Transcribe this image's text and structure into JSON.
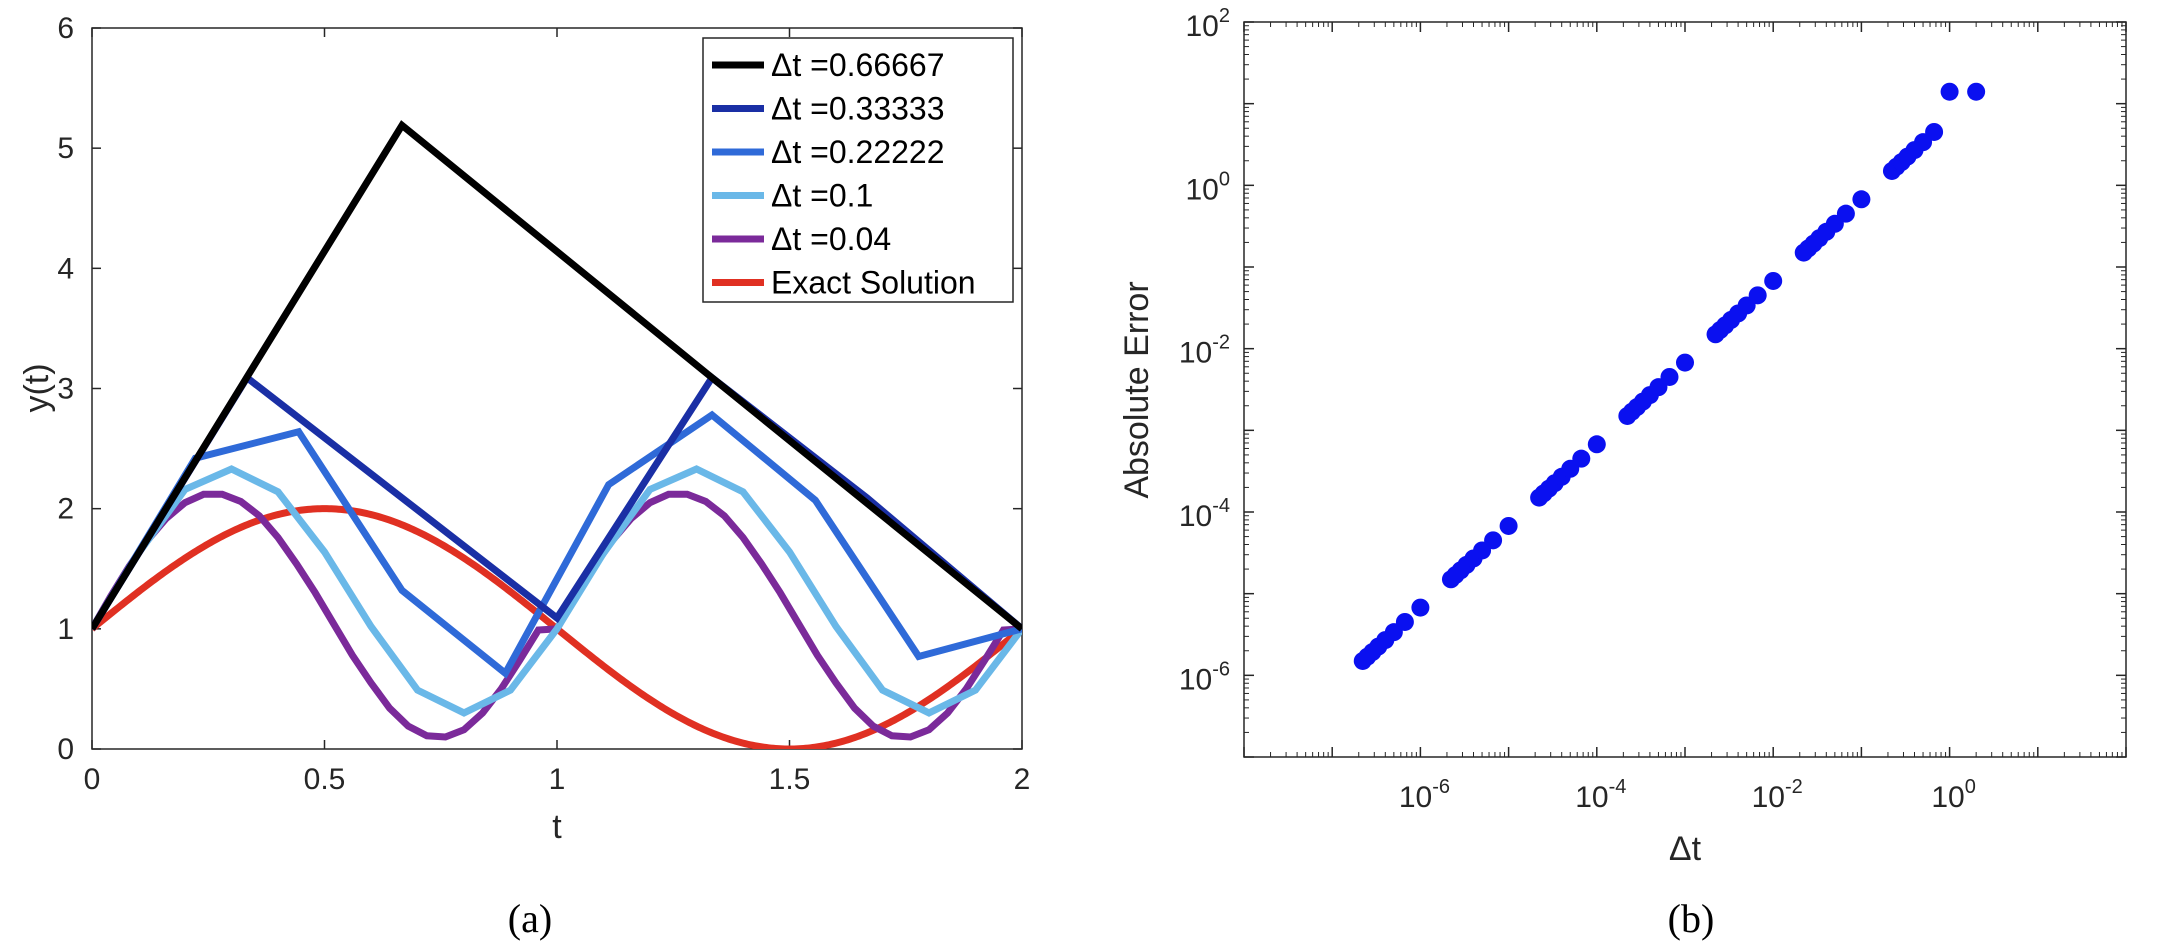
{
  "chart_data": [
    {
      "type": "line",
      "panel_label": "(a)",
      "xlabel": "t",
      "ylabel": "y(t)",
      "xlim": [
        0,
        2
      ],
      "ylim": [
        0,
        6
      ],
      "xticks": [
        "0",
        "0.5",
        "1",
        "1.5",
        "2"
      ],
      "yticks": [
        "0",
        "1",
        "2",
        "3",
        "4",
        "5",
        "6"
      ],
      "legend_position": "top-right",
      "series": [
        {
          "name": "Δt =0.66667",
          "color": "#000000",
          "x": [
            0,
            0.66667,
            1.33333,
            2
          ],
          "y": [
            1.0,
            5.19,
            3.09,
            1.0
          ]
        },
        {
          "name": "Δt =0.33333",
          "color": "#1a2fa5",
          "x": [
            0,
            0.33333,
            0.66667,
            1.0,
            1.33333,
            1.66667,
            2.0
          ],
          "y": [
            1.0,
            3.09,
            2.09,
            1.09,
            3.09,
            2.09,
            1.0
          ]
        },
        {
          "name": "Δt =0.22222",
          "color": "#2f6ad8",
          "x": [
            0,
            0.22222,
            0.44444,
            0.66667,
            0.88889,
            1.11111,
            1.33333,
            1.55556,
            1.77778,
            2.0
          ],
          "y": [
            1.0,
            2.42,
            2.64,
            1.32,
            0.63,
            2.2,
            2.78,
            2.07,
            0.77,
            1.0
          ]
        },
        {
          "name": "Δt =0.1",
          "color": "#6ab8e8",
          "x": [
            0,
            0.1,
            0.2,
            0.3,
            0.4,
            0.5,
            0.6,
            0.7,
            0.8,
            0.9,
            1.0,
            1.1,
            1.2,
            1.3,
            1.4,
            1.5,
            1.6,
            1.7,
            1.8,
            1.9,
            2.0
          ],
          "y": [
            1.0,
            1.63,
            2.16,
            2.33,
            2.14,
            1.64,
            1.02,
            0.49,
            0.3,
            0.49,
            1.0,
            1.63,
            2.16,
            2.33,
            2.14,
            1.64,
            1.02,
            0.49,
            0.3,
            0.49,
            1.0
          ]
        },
        {
          "name": "Δt =0.04",
          "color": "#7b2a9a",
          "x": [
            0,
            0.04,
            0.08,
            0.12,
            0.16,
            0.2,
            0.24,
            0.28,
            0.32,
            0.36,
            0.4,
            0.44,
            0.48,
            0.52,
            0.56,
            0.6,
            0.64,
            0.68,
            0.72,
            0.76,
            0.8,
            0.84,
            0.88,
            0.92,
            0.96,
            1.0,
            1.04,
            1.08,
            1.12,
            1.16,
            1.2,
            1.24,
            1.28,
            1.32,
            1.36,
            1.4,
            1.44,
            1.48,
            1.52,
            1.56,
            1.6,
            1.64,
            1.68,
            1.72,
            1.76,
            1.8,
            1.84,
            1.88,
            1.92,
            1.96,
            2.0
          ],
          "y": [
            1.0,
            1.27,
            1.52,
            1.74,
            1.92,
            2.05,
            2.12,
            2.12,
            2.06,
            1.94,
            1.76,
            1.54,
            1.3,
            1.04,
            0.78,
            0.55,
            0.34,
            0.19,
            0.11,
            0.1,
            0.16,
            0.3,
            0.5,
            0.74,
            0.99,
            1.0,
            1.27,
            1.52,
            1.74,
            1.92,
            2.05,
            2.12,
            2.12,
            2.06,
            1.94,
            1.76,
            1.54,
            1.3,
            1.04,
            0.78,
            0.55,
            0.34,
            0.19,
            0.11,
            0.1,
            0.16,
            0.3,
            0.5,
            0.74,
            0.99,
            1.0
          ]
        },
        {
          "name": "Exact Solution",
          "color": "#e03022",
          "function": "1 + sin(pi*t)",
          "samples": 400
        }
      ]
    },
    {
      "type": "scatter",
      "panel_label": "(b)",
      "xlabel": "Δt",
      "ylabel": "Absolute Error",
      "xscale": "log",
      "yscale": "log",
      "xlim_exponent": [
        -8,
        2
      ],
      "ylim_exponent": [
        -7,
        2
      ],
      "xtick_exponents": [
        "-6",
        "-4",
        "-2",
        "0"
      ],
      "ytick_exponents": [
        "-6",
        "-4",
        "-2",
        "0",
        "2"
      ],
      "tick_base": "10",
      "color": "#0a10f0",
      "points": [
        [
          2.22e-07,
          1.5e-06
        ],
        [
          2.5e-07,
          1.69e-06
        ],
        [
          2.86e-07,
          1.93e-06
        ],
        [
          3.33e-07,
          2.25e-06
        ],
        [
          4e-07,
          2.7e-06
        ],
        [
          5e-07,
          3.38e-06
        ],
        [
          6.67e-07,
          4.5e-06
        ],
        [
          1e-06,
          6.75e-06
        ],
        [
          2.22e-06,
          1.5e-05
        ],
        [
          2.5e-06,
          1.69e-05
        ],
        [
          2.86e-06,
          1.93e-05
        ],
        [
          3.33e-06,
          2.25e-05
        ],
        [
          4e-06,
          2.7e-05
        ],
        [
          5e-06,
          3.38e-05
        ],
        [
          6.67e-06,
          4.5e-05
        ],
        [
          1e-05,
          6.75e-05
        ],
        [
          2.22e-05,
          0.00015
        ],
        [
          2.5e-05,
          0.000169
        ],
        [
          2.86e-05,
          0.000193
        ],
        [
          3.33e-05,
          0.000225
        ],
        [
          4e-05,
          0.00027
        ],
        [
          5e-05,
          0.000338
        ],
        [
          6.67e-05,
          0.00045
        ],
        [
          0.0001,
          0.000675
        ],
        [
          0.000222,
          0.0015
        ],
        [
          0.00025,
          0.00169
        ],
        [
          0.000286,
          0.00193
        ],
        [
          0.000333,
          0.00225
        ],
        [
          0.0004,
          0.0027
        ],
        [
          0.0005,
          0.00338
        ],
        [
          0.000667,
          0.0045
        ],
        [
          0.001,
          0.00675
        ],
        [
          0.00222,
          0.015
        ],
        [
          0.0025,
          0.0169
        ],
        [
          0.00286,
          0.0193
        ],
        [
          0.00333,
          0.0225
        ],
        [
          0.004,
          0.027
        ],
        [
          0.005,
          0.0338
        ],
        [
          0.00667,
          0.045
        ],
        [
          0.01,
          0.0675
        ],
        [
          0.0222,
          0.15
        ],
        [
          0.025,
          0.169
        ],
        [
          0.0286,
          0.193
        ],
        [
          0.0333,
          0.225
        ],
        [
          0.04,
          0.27
        ],
        [
          0.05,
          0.338
        ],
        [
          0.0667,
          0.45
        ],
        [
          0.1,
          0.675
        ],
        [
          0.222,
          1.5
        ],
        [
          0.25,
          1.69
        ],
        [
          0.286,
          1.93
        ],
        [
          0.333,
          2.25
        ],
        [
          0.4,
          2.7
        ],
        [
          0.5,
          3.38
        ],
        [
          0.667,
          4.5
        ],
        [
          1.0,
          14.0
        ],
        [
          2.0,
          14.0
        ]
      ]
    }
  ]
}
